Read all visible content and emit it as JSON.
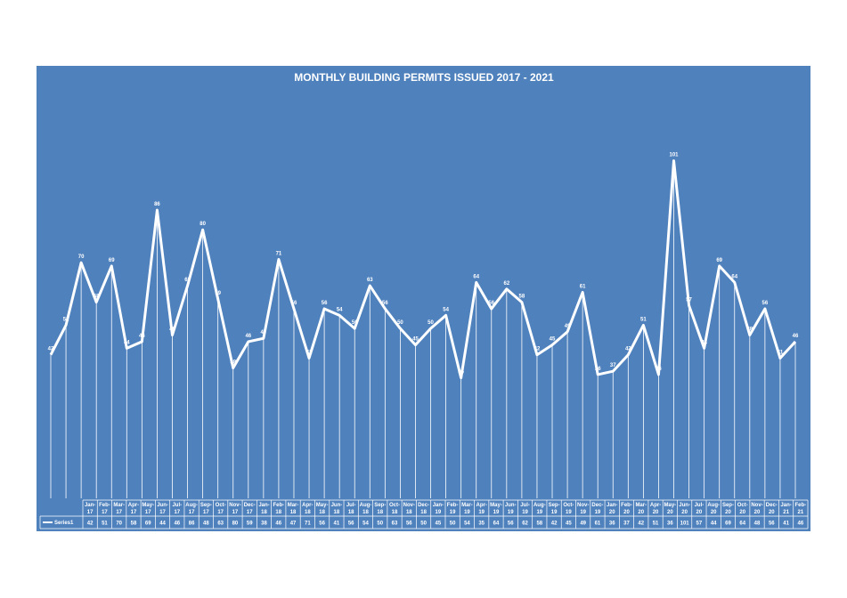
{
  "chart_data": {
    "type": "line",
    "title": "MONTHLY BUILDING PERMITS ISSUED 2017 - 2021",
    "categories": [
      "Jan-17",
      "Feb-17",
      "Mar-17",
      "Apr-17",
      "May-17",
      "Jun-17",
      "Jul-17",
      "Aug-17",
      "Sep-17",
      "Oct-17",
      "Nov-17",
      "Dec-17",
      "Jan-18",
      "Feb-18",
      "Mar-18",
      "Apr-18",
      "May-18",
      "Jun-18",
      "Jul-18",
      "Aug-18",
      "Sep-18",
      "Oct-18",
      "Nov-18",
      "Dec-18",
      "Jan-19",
      "Feb-19",
      "Mar-19",
      "Apr-19",
      "May-19",
      "Jun-19",
      "Jul-19",
      "Aug-19",
      "Sep-19",
      "Oct-19",
      "Nov-19",
      "Dec-19",
      "Jan-20",
      "Feb-20",
      "Mar-20",
      "Apr-20",
      "May-20",
      "Jun-20",
      "Jul-20",
      "Aug-20",
      "Sep-20",
      "Oct-20",
      "Nov-20",
      "Dec-20",
      "Jan-21",
      "Feb-21"
    ],
    "series": [
      {
        "name": "Series1",
        "color": "#ffffff",
        "values": [
          42,
          51,
          70,
          58,
          69,
          44,
          46,
          86,
          48,
          63,
          80,
          59,
          38,
          46,
          47,
          71,
          56,
          41,
          56,
          54,
          50,
          63,
          56,
          50,
          45,
          50,
          54,
          35,
          64,
          56,
          62,
          58,
          42,
          45,
          49,
          61,
          36,
          37,
          42,
          51,
          36,
          101,
          57,
          44,
          69,
          64,
          48,
          56,
          41,
          46
        ]
      }
    ],
    "ylim": [
      0,
      120
    ]
  }
}
